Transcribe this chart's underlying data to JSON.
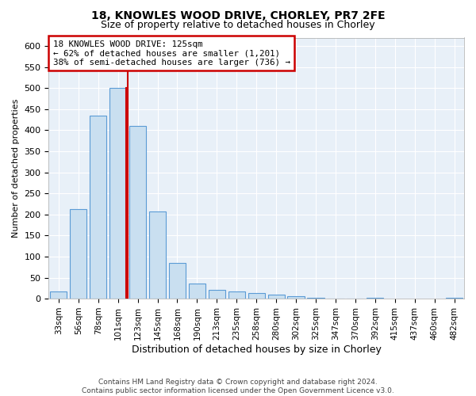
{
  "title": "18, KNOWLES WOOD DRIVE, CHORLEY, PR7 2FE",
  "subtitle": "Size of property relative to detached houses in Chorley",
  "xlabel": "Distribution of detached houses by size in Chorley",
  "ylabel": "Number of detached properties",
  "footer_line1": "Contains HM Land Registry data © Crown copyright and database right 2024.",
  "footer_line2": "Contains public sector information licensed under the Open Government Licence v3.0.",
  "annotation_line1": "18 KNOWLES WOOD DRIVE: 125sqm",
  "annotation_line2": "← 62% of detached houses are smaller (1,201)",
  "annotation_line3": "38% of semi-detached houses are larger (736) →",
  "bar_edge_color": "#5b9bd5",
  "bar_face_color": "#c9dff0",
  "highlight_bar_index": 3,
  "highlight_bar_edge_color": "#cc0000",
  "vline_color": "#cc0000",
  "vline_x": 3.5,
  "annotation_box_edge_color": "#cc0000",
  "categories": [
    "33sqm",
    "56sqm",
    "78sqm",
    "101sqm",
    "123sqm",
    "145sqm",
    "168sqm",
    "190sqm",
    "213sqm",
    "235sqm",
    "258sqm",
    "280sqm",
    "302sqm",
    "325sqm",
    "347sqm",
    "370sqm",
    "392sqm",
    "415sqm",
    "437sqm",
    "460sqm",
    "482sqm"
  ],
  "values": [
    18,
    212,
    435,
    500,
    410,
    207,
    85,
    35,
    20,
    18,
    14,
    10,
    5,
    2,
    1,
    1,
    3,
    0,
    0,
    0,
    3
  ],
  "ylim": [
    0,
    620
  ],
  "yticks": [
    0,
    50,
    100,
    150,
    200,
    250,
    300,
    350,
    400,
    450,
    500,
    550,
    600
  ],
  "plot_bg_color": "#e8f0f8",
  "background_color": "#ffffff",
  "grid_color": "#ffffff",
  "title_fontsize": 10,
  "subtitle_fontsize": 9
}
